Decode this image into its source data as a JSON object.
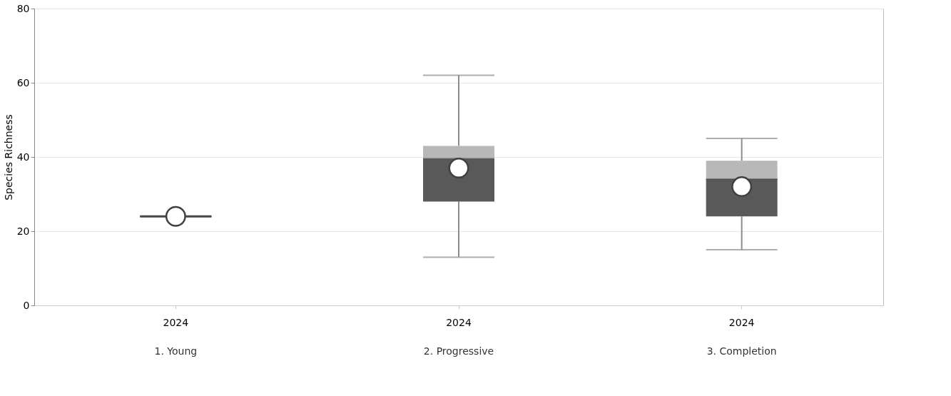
{
  "chart_data": {
    "type": "box",
    "ylabel": "Species Richness",
    "categories": [
      "2024",
      "2024",
      "2024"
    ],
    "ylim": [
      0,
      80
    ],
    "yticks": [
      0,
      20,
      40,
      60,
      80
    ],
    "grid": "y",
    "marker": "circle",
    "annotations": [
      "1. Young",
      "2. Progressive",
      "3. Completion"
    ],
    "boxes": [
      {
        "low": 24,
        "q1": 24,
        "median": 24,
        "q3": 24,
        "high": 24,
        "mean": 24
      },
      {
        "low": 13,
        "q1": 28,
        "median": 39.5,
        "q3": 43,
        "high": 62,
        "mean": 37
      },
      {
        "low": 15,
        "q1": 24,
        "median": 34,
        "q3": 39,
        "high": 45,
        "mean": 32
      }
    ]
  }
}
